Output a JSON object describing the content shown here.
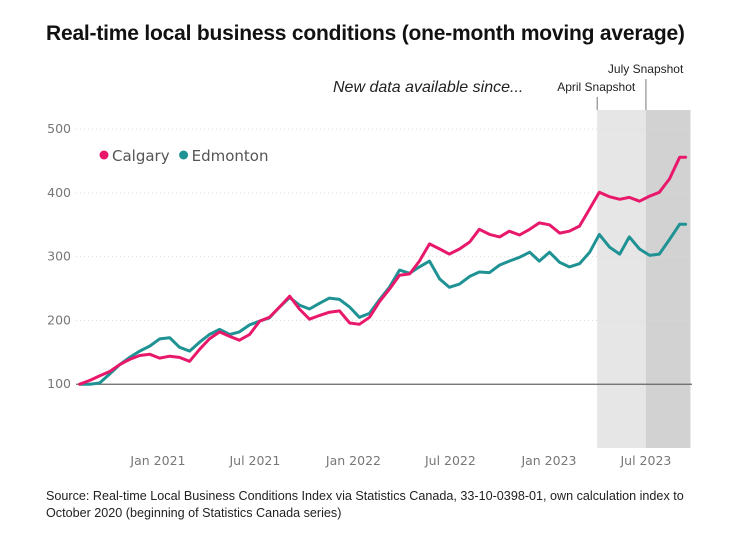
{
  "chart_data": {
    "type": "line",
    "title": "Real-time local business conditions (one-month moving average)",
    "annotation": "New data available since...",
    "source": "Source: Real-time Local Business Conditions Index via Statistics Canada, 33-10-0398-01, own calculation index to October 2020 (beginning of Statistics Canada series)",
    "xlim": [
      "2020-08-01",
      "2023-09-25"
    ],
    "ylim": [
      0,
      530
    ],
    "x_ticks": [
      {
        "date": "2021-01-01",
        "label": "Jan 2021"
      },
      {
        "date": "2021-07-01",
        "label": "Jul 2021"
      },
      {
        "date": "2022-01-01",
        "label": "Jan 2022"
      },
      {
        "date": "2022-07-01",
        "label": "Jul 2022"
      },
      {
        "date": "2023-01-01",
        "label": "Jan 2023"
      },
      {
        "date": "2023-07-01",
        "label": "Jul 2023"
      }
    ],
    "y_ticks": [
      100,
      200,
      300,
      400,
      500
    ],
    "baseline": 100,
    "grid": "horizontal dotted",
    "legend_position": "top-left",
    "shaded_regions": [
      {
        "label": "April Snapshot",
        "start": "2023-04-01",
        "end": "2023-09-22",
        "color": "#e6e6e6"
      },
      {
        "label": "July Snapshot",
        "start": "2023-07-01",
        "end": "2023-09-22",
        "color": "#d2d2d2"
      }
    ],
    "x": [
      "2020-08-08",
      "2020-08-27",
      "2020-09-14",
      "2020-10-03",
      "2020-10-22",
      "2020-11-09",
      "2020-11-28",
      "2020-12-17",
      "2021-01-04",
      "2021-01-23",
      "2021-02-10",
      "2021-03-01",
      "2021-03-20",
      "2021-04-07",
      "2021-04-26",
      "2021-05-15",
      "2021-06-02",
      "2021-06-21",
      "2021-07-10",
      "2021-07-28",
      "2021-08-16",
      "2021-09-04",
      "2021-09-22",
      "2021-10-11",
      "2021-10-30",
      "2021-11-17",
      "2021-12-06",
      "2021-12-25",
      "2022-01-12",
      "2022-01-31",
      "2022-02-19",
      "2022-03-09",
      "2022-03-28",
      "2022-04-16",
      "2022-05-04",
      "2022-05-23",
      "2022-06-11",
      "2022-06-29",
      "2022-07-18",
      "2022-08-06",
      "2022-08-24",
      "2022-09-12",
      "2022-10-01",
      "2022-10-19",
      "2022-11-07",
      "2022-11-26",
      "2022-12-14",
      "2023-01-02",
      "2023-01-21",
      "2023-02-08",
      "2023-02-27",
      "2023-03-18",
      "2023-04-05",
      "2023-04-24",
      "2023-05-13",
      "2023-05-31",
      "2023-06-19",
      "2023-07-08",
      "2023-07-26",
      "2023-08-14",
      "2023-09-02",
      "2023-09-13"
    ],
    "series": [
      {
        "name": "Calgary",
        "color": "#e8196b",
        "values": [
          100,
          106,
          113,
          120,
          131,
          139,
          145,
          147,
          141,
          144,
          142,
          136,
          155,
          171,
          182,
          175,
          169,
          178,
          199,
          205,
          221,
          238,
          218,
          202,
          208,
          213,
          215,
          196,
          194,
          205,
          230,
          249,
          271,
          273,
          293,
          320,
          312,
          304,
          312,
          323,
          343,
          335,
          331,
          340,
          334,
          343,
          353,
          350,
          337,
          340,
          348,
          375,
          401,
          394,
          390,
          393,
          387,
          395,
          401,
          422,
          456,
          456
        ]
      },
      {
        "name": "Edmonton",
        "color": "#1f9294",
        "values": [
          100,
          100,
          102,
          116,
          131,
          142,
          152,
          160,
          171,
          173,
          158,
          152,
          166,
          178,
          186,
          178,
          182,
          193,
          199,
          204,
          221,
          236,
          224,
          218,
          227,
          235,
          233,
          221,
          205,
          211,
          233,
          252,
          279,
          274,
          284,
          293,
          265,
          252,
          257,
          269,
          276,
          275,
          287,
          293,
          299,
          307,
          293,
          307,
          291,
          284,
          289,
          307,
          335,
          315,
          304,
          331,
          312,
          302,
          304,
          327,
          351,
          351
        ]
      }
    ]
  }
}
